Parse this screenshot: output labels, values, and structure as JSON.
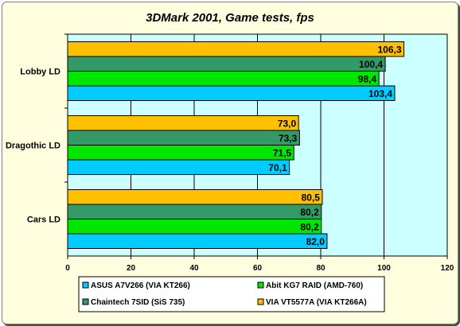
{
  "chart_data": {
    "type": "bar",
    "orientation": "horizontal",
    "title": "3DMark 2001, Game tests, fps",
    "xlabel": "",
    "ylabel": "",
    "xlim": [
      0,
      120
    ],
    "xticks": [
      0,
      20,
      40,
      60,
      80,
      100,
      120
    ],
    "grid": true,
    "legend_position": "bottom",
    "categories": [
      "Lobby LD",
      "Dragothic LD",
      "Cars LD"
    ],
    "series": [
      {
        "name": "VIA VT5577A (VIA KT266A)",
        "color": "#ffc000",
        "values": [
          106.3,
          73.0,
          80.5
        ],
        "labels": [
          "106,3",
          "73,0",
          "80,5"
        ]
      },
      {
        "name": "Chaintech 7SID (SiS 735)",
        "color": "#339966",
        "values": [
          100.4,
          73.3,
          80.2
        ],
        "labels": [
          "100,4",
          "73,3",
          "80,2"
        ]
      },
      {
        "name": "Abit KG7 RAID (AMD-760)",
        "color": "#00e600",
        "values": [
          98.4,
          71.5,
          80.2
        ],
        "labels": [
          "98,4",
          "71,5",
          "80,2"
        ]
      },
      {
        "name": "ASUS A7V266 (VIA KT266)",
        "color": "#00ccff",
        "values": [
          103.4,
          70.1,
          82.0
        ],
        "labels": [
          "103,4",
          "70,1",
          "82,0"
        ]
      }
    ],
    "legend_order": [
      "ASUS A7V266 (VIA KT266)",
      "Abit KG7 RAID (AMD-760)",
      "Chaintech 7SID (SiS 735)",
      "VIA VT5577A (VIA KT266A)"
    ],
    "colors": {
      "plot_background": "#ccffff",
      "frame_background": "#ffffe0"
    }
  }
}
